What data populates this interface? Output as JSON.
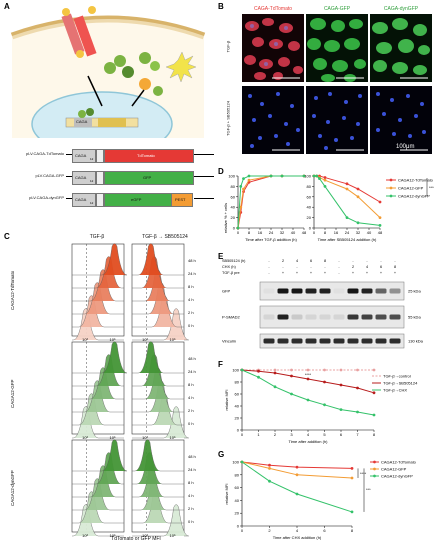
{
  "panels": {
    "A": "A",
    "B": "B",
    "C": "C",
    "D": "D",
    "E": "E",
    "F": "F",
    "G": "G"
  },
  "panelA": {
    "nucleus_box": "CAGA",
    "constructs": [
      {
        "name": "pLV.CAGA-TdTomato",
        "promoter": "CAGA",
        "sub": "12",
        "reporter": "TdTomato",
        "color": "#e53935",
        "pest": ""
      },
      {
        "name": "pLV.CAGA-GFP",
        "promoter": "CAGA",
        "sub": "12",
        "reporter": "GFP",
        "color": "#43b047",
        "pest": ""
      },
      {
        "name": "pLV.CAGA-dynGFP",
        "promoter": "CAGA",
        "sub": "12",
        "reporter": "eGFP",
        "color": "#43b047",
        "pest": "PEST"
      }
    ]
  },
  "panelB": {
    "col_titles": [
      "CAGA-TdTomato",
      "CAGA-GFP",
      "CAGA-dynGFP"
    ],
    "col_colors": [
      "#e53935",
      "#2e9e3a",
      "#2e9e3a"
    ],
    "row_labels": [
      "TGF-β",
      "TGF-β + SB505124"
    ],
    "scale_bar": "100μm"
  },
  "panelC": {
    "col_titles": [
      "TGF-β",
      "TGF-β → SB505124"
    ],
    "time_labels": [
      "48 h",
      "24 h",
      "8 h",
      "4 h",
      "2 h",
      "0 h"
    ],
    "row_labels": [
      "CAGA12-TdTomato",
      "CAGA12-GFP",
      "CAGA12-dynGFP"
    ],
    "row_colors": [
      "#e8553a",
      "#2f8f3a",
      "#2f8f3a"
    ],
    "xticks": [
      "10³",
      "10⁵"
    ],
    "xlabel": "TdTomato or GFP MFI"
  },
  "chart_data": [
    {
      "panel": "D",
      "type": "line",
      "ylabel": "relative % + cells",
      "subcharts": [
        {
          "xlabel": "Time after TGF-β addition (h)",
          "x": [
            0,
            2,
            4,
            8,
            24,
            32,
            48
          ],
          "xticks": [
            "0",
            "4",
            "8",
            "12",
            "16",
            "20",
            "24",
            "28",
            "32",
            "36",
            "40",
            "44",
            "48"
          ],
          "series": [
            {
              "name": "CAGA12-TdTomato",
              "color": "#e53935",
              "values": [
                0,
                30,
                70,
                88,
                100,
                100,
                100
              ]
            },
            {
              "name": "CAGA12-GFP",
              "color": "#f39c34",
              "values": [
                0,
                40,
                75,
                92,
                100,
                100,
                100
              ]
            },
            {
              "name": "CAGA12-dynGFP",
              "color": "#34c26a",
              "values": [
                0,
                80,
                95,
                100,
                100,
                100,
                100
              ]
            }
          ]
        },
        {
          "xlabel": "Time after SB505124 addition (h)",
          "x": [
            0,
            2,
            4,
            8,
            24,
            32,
            48
          ],
          "xticks": [
            "0",
            "4",
            "8",
            "12",
            "16",
            "20",
            "24",
            "28",
            "32",
            "36",
            "40",
            "44",
            "48"
          ],
          "series": [
            {
              "name": "CAGA12-TdTomato",
              "color": "#e53935",
              "values": [
                100,
                100,
                100,
                97,
                85,
                75,
                50
              ]
            },
            {
              "name": "CAGA12-GFP",
              "color": "#f39c34",
              "values": [
                100,
                100,
                97,
                92,
                75,
                60,
                20
              ]
            },
            {
              "name": "CAGA12-dynGFP",
              "color": "#34c26a",
              "values": [
                100,
                100,
                95,
                80,
                20,
                10,
                5
              ]
            }
          ]
        }
      ],
      "yticks": [
        "0",
        "20",
        "40",
        "60",
        "80",
        "100"
      ],
      "ylim": [
        0,
        100
      ],
      "significance": "****"
    },
    {
      "panel": "F",
      "type": "line",
      "xlabel": "Time after addition (h)",
      "ylabel": "relative MFI",
      "x": [
        0,
        1,
        2,
        3,
        4,
        5,
        6,
        7,
        8
      ],
      "xticks": [
        "0",
        "1",
        "2",
        "3",
        "4",
        "5",
        "6",
        "7",
        "8"
      ],
      "yticks": [
        "0",
        "20",
        "40",
        "60",
        "80",
        "100"
      ],
      "ylim": [
        0,
        100
      ],
      "series": [
        {
          "name": "TGF-β→control",
          "color": "#e8a0a0",
          "dashed": true,
          "values": [
            100,
            100,
            100,
            100,
            100,
            100,
            100,
            100,
            100
          ]
        },
        {
          "name": "TGF-β→SB505124",
          "color": "#b71c1c",
          "values": [
            100,
            98,
            95,
            90,
            85,
            80,
            75,
            70,
            62
          ]
        },
        {
          "name": "TGF-β→CHX",
          "color": "#34c26a",
          "values": [
            100,
            88,
            72,
            60,
            50,
            42,
            34,
            30,
            25
          ]
        }
      ],
      "significance": "****"
    },
    {
      "panel": "G",
      "type": "line",
      "xlabel": "Time after CHX addition (h)",
      "ylabel": "relative MFI",
      "x": [
        0,
        2,
        4,
        8
      ],
      "xticks": [
        "0",
        "2",
        "4",
        "6",
        "8"
      ],
      "yticks": [
        "0",
        "20",
        "40",
        "60",
        "80",
        "100"
      ],
      "ylim": [
        0,
        100
      ],
      "series": [
        {
          "name": "CAGA12-TdTomato",
          "color": "#e53935",
          "values": [
            100,
            95,
            92,
            90
          ]
        },
        {
          "name": "CAGA12-GFP",
          "color": "#f39c34",
          "values": [
            100,
            90,
            80,
            75
          ]
        },
        {
          "name": "CAGA12-dynGFP",
          "color": "#34c26a",
          "values": [
            100,
            70,
            50,
            22
          ]
        }
      ],
      "significance": [
        "****",
        "***"
      ]
    }
  ],
  "panelE": {
    "condition_rows": [
      {
        "label": "SB505124 (h)",
        "values": [
          "-",
          "2",
          "4",
          "6",
          "8",
          "-",
          "-",
          "-",
          "-",
          "-"
        ]
      },
      {
        "label": "CHX (h)",
        "values": [
          "-",
          "-",
          "-",
          "-",
          "-",
          "-",
          "2",
          "4",
          "6",
          "8"
        ]
      },
      {
        "label": "TGF-β pre",
        "values": [
          "-",
          "+",
          "+",
          "+",
          "+",
          "-",
          "+",
          "+",
          "+",
          "+"
        ]
      }
    ],
    "blots": [
      {
        "name": "GFP",
        "size": "25 kDa",
        "intensities": [
          0.05,
          0.95,
          0.95,
          0.9,
          0.9,
          0.05,
          0.95,
          0.9,
          0.6,
          0.4
        ]
      },
      {
        "name": "P-SMAD2",
        "size": "55 kDa",
        "intensities": [
          0.1,
          0.9,
          0.15,
          0.1,
          0.1,
          0.1,
          0.8,
          0.75,
          0.7,
          0.7
        ]
      },
      {
        "name": "Vinculin",
        "size": "130 kDa",
        "intensities": [
          0.85,
          0.85,
          0.85,
          0.85,
          0.85,
          0.85,
          0.85,
          0.85,
          0.85,
          0.85
        ]
      }
    ]
  }
}
